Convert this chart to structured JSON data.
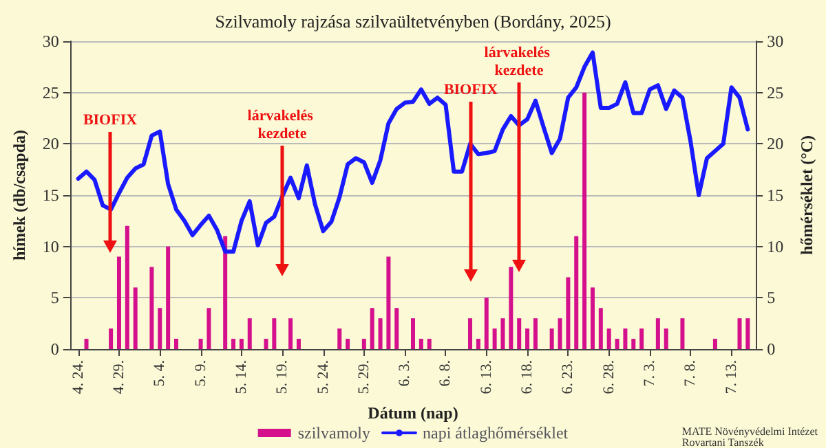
{
  "chart_data": {
    "type": "bar",
    "title": "Szilvamoly rajzása szilvaültetvényben (Bordány, 2025)",
    "xlabel": "Dátum (nap)",
    "ylabel": "hímek (db/csapda)",
    "y2label": "hőmérséklet (°C)",
    "x": [
      "--04-24",
      "--04-25",
      "--04-26",
      "--04-27",
      "--04-28",
      "--04-29",
      "--04-30",
      "--05-01",
      "--05-02",
      "--05-03",
      "--05-04",
      "--05-05",
      "--05-06",
      "--05-07",
      "--05-08",
      "--05-09",
      "--05-10",
      "--05-11",
      "--05-12",
      "--05-13",
      "--05-14",
      "--05-15",
      "--05-16",
      "--05-17",
      "--05-18",
      "--05-19",
      "--05-20",
      "--05-21",
      "--05-22",
      "--05-23",
      "--05-24",
      "--05-25",
      "--05-26",
      "--05-27",
      "--05-28",
      "--05-29",
      "--05-30",
      "--05-31",
      "--06-01",
      "--06-02",
      "--06-03",
      "--06-04",
      "--06-05",
      "--06-06",
      "--06-07",
      "--06-08",
      "--06-09",
      "--06-10",
      "--06-11",
      "--06-12",
      "--06-13",
      "--06-14",
      "--06-15",
      "--06-16",
      "--06-17",
      "--06-18",
      "--06-19",
      "--06-20",
      "--06-21",
      "--06-22",
      "--06-23",
      "--06-24",
      "--06-25",
      "--06-26",
      "--06-27",
      "--06-28",
      "--06-29",
      "--06-30",
      "--07-01",
      "--07-02",
      "--07-03",
      "--07-04",
      "--07-05",
      "--07-06",
      "--07-07",
      "--07-08",
      "--07-09",
      "--07-10",
      "--07-11",
      "--07-12",
      "--07-13",
      "--07-14",
      "--07-15"
    ],
    "series": [
      {
        "name": "szilvamoly",
        "color": "#d4108c",
        "values": [
          0,
          1,
          0,
          0,
          2,
          9,
          12,
          6,
          0,
          8,
          4,
          10,
          1,
          0,
          0,
          1,
          4,
          0,
          11,
          1,
          1,
          3,
          0,
          1,
          3,
          0,
          3,
          1,
          0,
          0,
          0,
          0,
          2,
          1,
          0,
          1,
          4,
          3,
          9,
          4,
          0,
          3,
          1,
          1,
          0,
          0,
          0,
          0,
          3,
          1,
          5,
          2,
          3,
          8,
          3,
          2,
          3,
          0,
          2,
          3,
          7,
          11,
          25,
          6,
          4,
          2,
          1,
          2,
          1,
          2,
          0,
          3,
          2,
          0,
          3,
          0,
          0,
          0,
          1,
          0,
          0,
          3,
          3
        ]
      },
      {
        "name": "napi átlaghőmérséklet",
        "type": "line",
        "color": "#1a1aff",
        "values": [
          16.6,
          17.3,
          16.5,
          14.0,
          13.6,
          15.2,
          16.7,
          17.6,
          18.0,
          20.8,
          21.2,
          16.1,
          13.6,
          12.5,
          11.1,
          12.1,
          13.0,
          11.6,
          9.5,
          9.5,
          12.5,
          14.4,
          10.1,
          12.3,
          12.9,
          14.9,
          16.7,
          14.7,
          17.9,
          14.1,
          11.5,
          12.4,
          14.8,
          18.0,
          18.6,
          18.2,
          16.2,
          18.4,
          22.0,
          23.4,
          24.0,
          24.1,
          25.3,
          23.9,
          24.5,
          23.8,
          17.3,
          17.3,
          20.0,
          19.0,
          19.1,
          19.3,
          21.4,
          22.7,
          21.8,
          22.4,
          24.2,
          21.6,
          19.1,
          20.5,
          24.5,
          25.5,
          27.5,
          28.9,
          23.5,
          23.5,
          23.9,
          26.0,
          23.0,
          23.0,
          25.3,
          25.7,
          23.4,
          25.2,
          24.5,
          20.2,
          15.0,
          18.6,
          19.3,
          20.0,
          25.5,
          24.5,
          21.4
        ]
      }
    ],
    "xlim": [
      "--04-23",
      "--07-16"
    ],
    "xticks": [
      {
        "value": "--04-24",
        "label": "4. 24."
      },
      {
        "value": "--04-29",
        "label": "4. 29."
      },
      {
        "value": "--05-04",
        "label": "5. 4."
      },
      {
        "value": "--05-09",
        "label": "5. 9."
      },
      {
        "value": "--05-14",
        "label": "5. 14."
      },
      {
        "value": "--05-19",
        "label": "5. 19."
      },
      {
        "value": "--05-24",
        "label": "5. 24."
      },
      {
        "value": "--05-29",
        "label": "5. 29."
      },
      {
        "value": "--06-03",
        "label": "6. 3."
      },
      {
        "value": "--06-08",
        "label": "6. 8."
      },
      {
        "value": "--06-13",
        "label": "6. 13."
      },
      {
        "value": "--06-18",
        "label": "6. 18."
      },
      {
        "value": "--06-23",
        "label": "6. 23."
      },
      {
        "value": "--06-28",
        "label": "6. 28."
      },
      {
        "value": "--07-03",
        "label": "7. 3."
      },
      {
        "value": "--07-08",
        "label": "7. 8."
      },
      {
        "value": "--07-13",
        "label": "7. 13."
      }
    ],
    "ylim": [
      0,
      30
    ],
    "yticks": [
      0,
      5,
      10,
      15,
      20,
      25,
      30
    ],
    "y2lim": [
      0,
      30
    ],
    "y2ticks": [
      0,
      5,
      10,
      15,
      20,
      25,
      30
    ],
    "grid": "y",
    "legend": "bottom",
    "marker": "none",
    "line_style": "solid",
    "annotations": [
      "BIOFIX",
      "lárvakelés kezdete",
      "BIOFIX",
      "lárvakelés kezdete",
      "MATE Növényvédelmi Intézet Rovartani Tanszék"
    ]
  }
}
